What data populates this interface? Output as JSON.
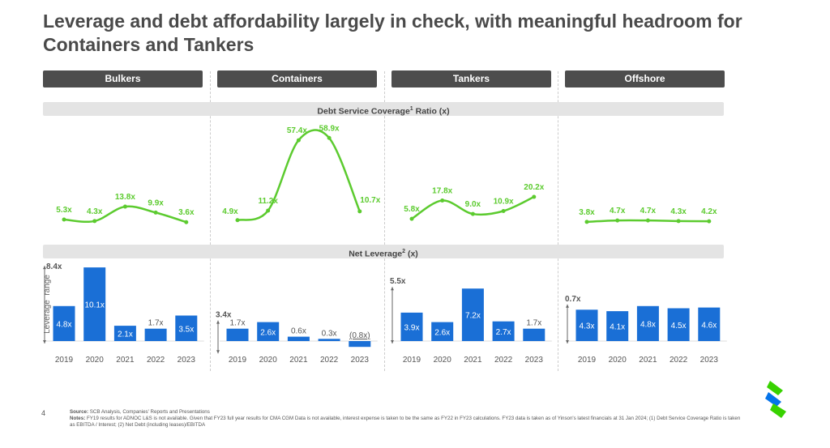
{
  "title": "Leverage and debt affordability largely in check, with meaningful headroom for Containers and Tankers",
  "segments": [
    "Bulkers",
    "Containers",
    "Tankers",
    "Offshore"
  ],
  "dscr_band": {
    "label_a": "Debt Service Coverage",
    "sup": "1",
    "label_b": " Ratio (x)"
  },
  "lev_band": {
    "label_a": "Net Leverage",
    "sup": "2",
    "label_b": " (x)"
  },
  "leverage_range_label": "Leverage  range",
  "colors": {
    "line": "#5ccb2f",
    "bar": "#1a6fd6",
    "header": "#4d4d4d"
  },
  "chart_data": [
    {
      "type": "line",
      "title": "Debt Service Coverage Ratio (x)",
      "categories": [
        "2019",
        "2020",
        "2021",
        "2022",
        "2023"
      ],
      "series": [
        {
          "name": "Bulkers",
          "values": [
            5.3,
            4.3,
            13.8,
            9.9,
            3.6
          ],
          "labels": [
            "5.3x",
            "4.3x",
            "13.8x",
            "9.9x",
            "3.6x"
          ]
        },
        {
          "name": "Containers",
          "values": [
            4.9,
            11.2,
            57.4,
            58.9,
            10.7
          ],
          "labels": [
            "4.9x",
            "11.2x",
            "57.4x",
            "58.9x",
            "10.7x"
          ]
        },
        {
          "name": "Tankers",
          "values": [
            5.8,
            17.8,
            9.0,
            10.9,
            20.2
          ],
          "labels": [
            "5.8x",
            "17.8x",
            "9.0x",
            "10.9x",
            "20.2x"
          ]
        },
        {
          "name": "Offshore",
          "values": [
            3.8,
            4.7,
            4.7,
            4.3,
            4.2
          ],
          "labels": [
            "3.8x",
            "4.7x",
            "4.7x",
            "4.3x",
            "4.2x"
          ]
        }
      ]
    },
    {
      "type": "bar",
      "title": "Net Leverage (x)",
      "categories": [
        "2019",
        "2020",
        "2021",
        "2022",
        "2023"
      ],
      "series": [
        {
          "name": "Bulkers",
          "values": [
            4.8,
            10.1,
            2.1,
            1.7,
            3.5
          ],
          "labels": [
            "4.8x",
            "10.1x",
            "2.1x",
            "1.7x",
            "3.5x"
          ],
          "range": "8.4x"
        },
        {
          "name": "Containers",
          "values": [
            1.7,
            2.6,
            0.6,
            0.3,
            -0.8
          ],
          "labels": [
            "1.7x",
            "2.6x",
            "0.6x",
            "0.3x",
            "(0.8x)"
          ],
          "range": "3.4x"
        },
        {
          "name": "Tankers",
          "values": [
            3.9,
            2.6,
            7.2,
            2.7,
            1.7
          ],
          "labels": [
            "3.9x",
            "2.6x",
            "7.2x",
            "2.7x",
            "1.7x"
          ],
          "range": "5.5x"
        },
        {
          "name": "Offshore",
          "values": [
            4.3,
            4.1,
            4.8,
            4.5,
            4.6
          ],
          "labels": [
            "4.3x",
            "4.1x",
            "4.8x",
            "4.5x",
            "4.6x"
          ],
          "range": "0.7x"
        }
      ]
    }
  ],
  "footer": {
    "page": "4",
    "source_label": "Source:",
    "source": " SCB Analysis, Companies' Reports and Presentations",
    "notes_label": "Notes:",
    "notes": " FY19 results for ADNOC L&S is not available. Given that FY23 full year results for CMA CGM Data is not available, interest expense is taken to be the same as FY22 in FY23 calculations. FY23 data is taken as of Yinson's latest financials at 31 Jan 2024; (1) Debt Service Coverage Ratio is taken as EBITDA / Interest; (2) Net Debt (including leases)/EBITDA"
  }
}
